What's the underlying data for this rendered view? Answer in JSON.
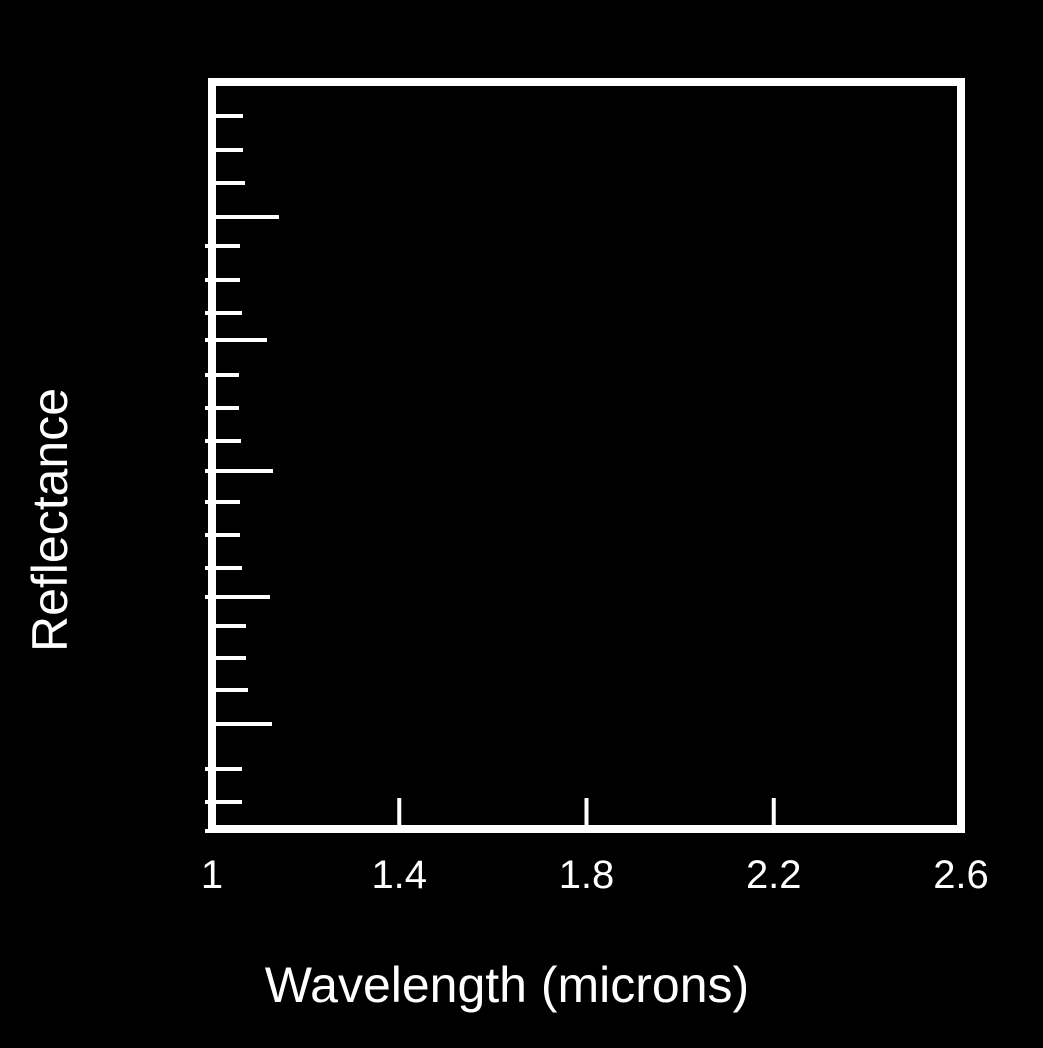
{
  "colors": {
    "background": "#000000",
    "foreground": "#ffffff"
  },
  "chart_data": {
    "type": "line",
    "title": "",
    "xlabel": "Wavelength (microns)",
    "ylabel": "Reflectance",
    "xlim": [
      1,
      2.6
    ],
    "x_ticks": [
      1,
      1.4,
      1.8,
      2.2,
      2.6
    ],
    "x_tick_labels": [
      "1",
      "1.4",
      "1.8",
      "2.2",
      "2.6"
    ],
    "y_tick_labels": [],
    "grid": false,
    "series": []
  }
}
